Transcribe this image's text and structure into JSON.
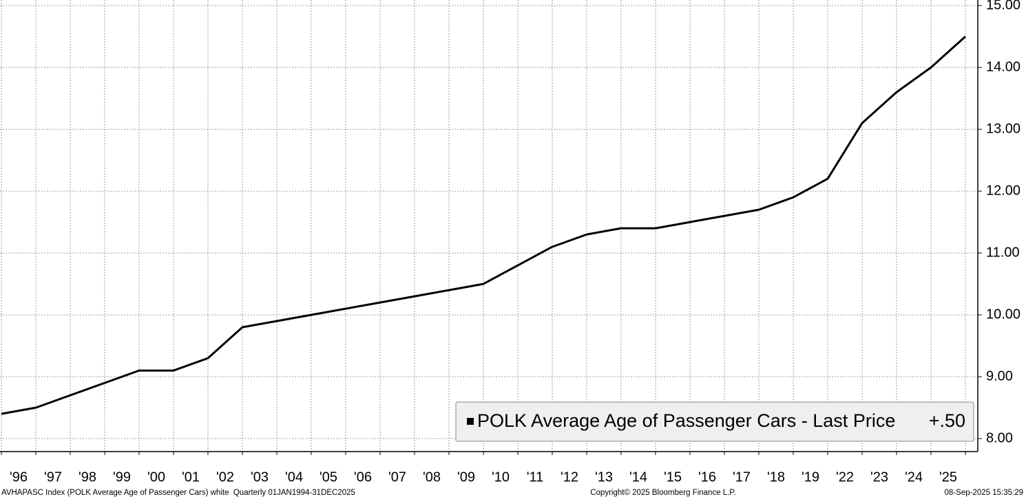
{
  "chart_data": {
    "type": "line",
    "x": [
      0,
      1,
      2,
      3,
      4,
      5,
      6,
      7,
      8,
      9,
      10,
      11,
      12,
      13,
      14,
      15,
      16,
      17,
      18,
      19,
      20,
      21,
      22,
      23,
      24,
      25,
      26,
      27,
      28
    ],
    "xlim": [
      -0.04,
      28.36
    ],
    "xticks": [
      {
        "value": 0.5,
        "label": "'96"
      },
      {
        "value": 1.5,
        "label": "'97"
      },
      {
        "value": 2.5,
        "label": "'98"
      },
      {
        "value": 3.5,
        "label": "'99"
      },
      {
        "value": 4.5,
        "label": "'00"
      },
      {
        "value": 5.5,
        "label": "'01"
      },
      {
        "value": 6.5,
        "label": "'02"
      },
      {
        "value": 7.5,
        "label": "'03"
      },
      {
        "value": 8.5,
        "label": "'04"
      },
      {
        "value": 9.5,
        "label": "'05"
      },
      {
        "value": 10.5,
        "label": "'06"
      },
      {
        "value": 11.5,
        "label": "'07"
      },
      {
        "value": 12.5,
        "label": "'08"
      },
      {
        "value": 13.5,
        "label": "'09"
      },
      {
        "value": 14.5,
        "label": "'10"
      },
      {
        "value": 15.5,
        "label": "'11"
      },
      {
        "value": 16.5,
        "label": "'12"
      },
      {
        "value": 17.5,
        "label": "'13"
      },
      {
        "value": 18.5,
        "label": "'14"
      },
      {
        "value": 19.5,
        "label": "'15"
      },
      {
        "value": 20.5,
        "label": "'16"
      },
      {
        "value": 21.5,
        "label": "'17"
      },
      {
        "value": 22.5,
        "label": "'18"
      },
      {
        "value": 23.5,
        "label": "'19"
      },
      {
        "value": 24.5,
        "label": "'22"
      },
      {
        "value": 25.5,
        "label": "'23"
      },
      {
        "value": 26.5,
        "label": "'24"
      },
      {
        "value": 27.5,
        "label": "'25"
      }
    ],
    "ylim": [
      7.79,
      15.09
    ],
    "yticks": [
      {
        "value": 8,
        "label": "8.00"
      },
      {
        "value": 9,
        "label": "9.00"
      },
      {
        "value": 10,
        "label": "10.00"
      },
      {
        "value": 11,
        "label": "11.00"
      },
      {
        "value": 12,
        "label": "12.00"
      },
      {
        "value": 13,
        "label": "13.00"
      },
      {
        "value": 14,
        "label": "14.00"
      },
      {
        "value": 15,
        "label": "15.00"
      }
    ],
    "grid": true,
    "series": [
      {
        "name": "POLK Average Age of Passenger Cars - Last Price",
        "color": "#000000",
        "values": [
          8.4,
          8.5,
          8.7,
          8.9,
          9.1,
          9.1,
          9.3,
          9.8,
          9.9,
          10.0,
          10.1,
          10.2,
          10.3,
          10.4,
          10.5,
          10.8,
          11.1,
          11.3,
          11.4,
          11.4,
          11.5,
          11.6,
          11.7,
          11.9,
          12.2,
          13.1,
          13.6,
          14.0,
          14.5
        ]
      }
    ],
    "legend_change": "+.50",
    "footer_left": "AVHAPASC Index (POLK Average Age of Passenger Cars) white  Quarterly 01JAN1994-31DEC2025",
    "footer_center": "Copyright© 2025 Bloomberg Finance L.P.",
    "footer_right": "08-Sep-2025 15:35:29"
  }
}
